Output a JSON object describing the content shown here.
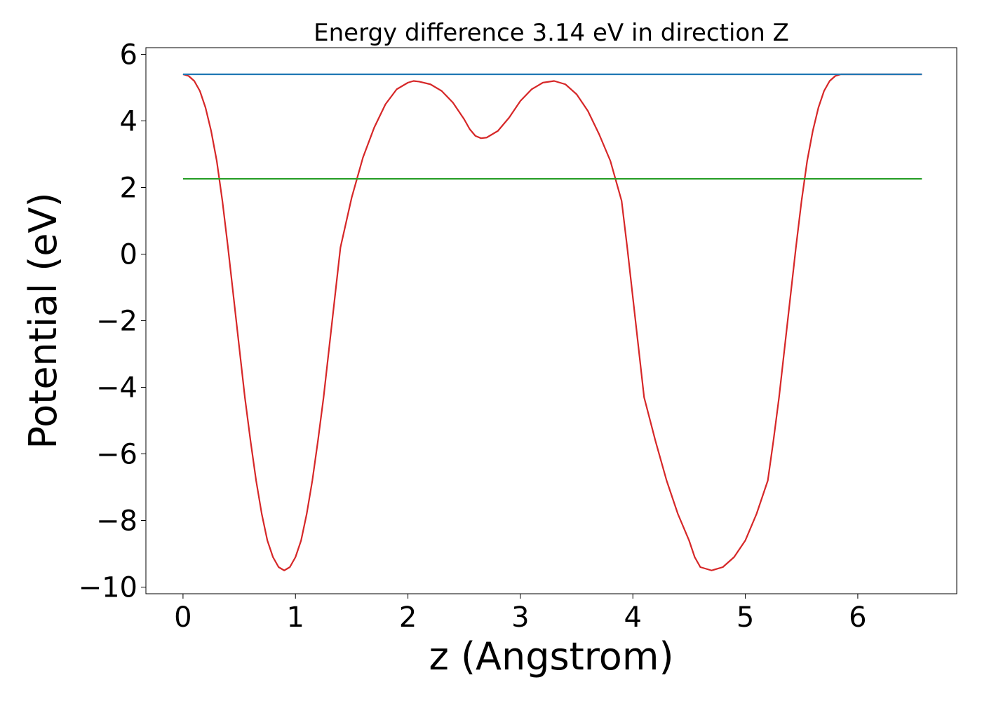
{
  "chart_data": {
    "type": "line",
    "title": "Energy difference 3.14 eV in direction Z",
    "xlabel": "z (Angstrom)",
    "ylabel": "Potential (eV)",
    "xlim": [
      -0.33,
      6.88
    ],
    "ylim": [
      -10.2,
      6.2
    ],
    "x_ticks": [
      0,
      1,
      2,
      3,
      4,
      5,
      6
    ],
    "x_tick_labels": [
      "0",
      "1",
      "2",
      "3",
      "4",
      "5",
      "6"
    ],
    "y_ticks": [
      -10,
      -8,
      -6,
      -4,
      -2,
      0,
      2,
      4,
      6
    ],
    "y_tick_labels": [
      "−10",
      "−8",
      "−6",
      "−4",
      "−2",
      "0",
      "2",
      "4",
      "6"
    ],
    "grid": false,
    "legend": "none",
    "series": [
      {
        "color": "#d62728",
        "x": [
          0.0,
          0.05,
          0.1,
          0.15,
          0.2,
          0.25,
          0.3,
          0.35,
          0.4,
          0.45,
          0.5,
          0.55,
          0.6,
          0.65,
          0.7,
          0.75,
          0.8,
          0.85,
          0.9,
          0.95,
          1.0,
          1.05,
          1.1,
          1.15,
          1.2,
          1.25,
          1.3,
          1.35,
          1.4,
          1.5,
          1.6,
          1.7,
          1.8,
          1.9,
          2.0,
          2.05,
          2.1,
          2.2,
          2.3,
          2.4,
          2.5,
          2.55,
          2.6,
          2.65,
          2.7,
          2.8,
          2.9,
          3.0,
          3.1,
          3.2,
          3.3,
          3.4,
          3.5,
          3.6,
          3.7,
          3.8,
          3.9,
          3.95,
          4.0,
          4.05,
          4.1,
          4.2,
          4.3,
          4.4,
          4.5,
          4.55,
          4.6,
          4.7,
          4.8,
          4.9,
          5.0,
          5.1,
          5.2,
          5.25,
          5.3,
          5.35,
          5.4,
          5.45,
          5.5,
          5.55,
          5.6,
          5.65,
          5.7,
          5.75,
          5.8,
          5.85,
          5.9,
          5.95,
          6.0,
          6.05,
          6.1,
          6.15,
          6.2,
          6.25,
          6.3,
          6.35,
          6.4,
          6.45,
          6.5,
          6.55,
          6.57
        ],
        "y": [
          5.4,
          5.35,
          5.2,
          4.9,
          4.4,
          3.7,
          2.8,
          1.6,
          0.2,
          -1.3,
          -2.8,
          -4.3,
          -5.6,
          -6.8,
          -7.8,
          -8.6,
          -9.1,
          -9.4,
          -9.5,
          -9.4,
          -9.1,
          -8.6,
          -7.8,
          -6.8,
          -5.6,
          -4.3,
          -2.8,
          -1.3,
          0.2,
          1.7,
          2.9,
          3.8,
          4.5,
          4.95,
          5.15,
          5.2,
          5.18,
          5.1,
          4.9,
          4.55,
          4.05,
          3.75,
          3.55,
          3.48,
          3.5,
          3.7,
          4.1,
          4.6,
          4.95,
          5.15,
          5.2,
          5.1,
          4.8,
          4.3,
          3.6,
          2.8,
          1.6,
          0.2,
          -1.3,
          -2.8,
          -4.3,
          -5.6,
          -6.8,
          -7.8,
          -8.6,
          -9.1,
          -9.4,
          -9.5,
          -9.4,
          -9.1,
          -8.6,
          -7.8,
          -6.8,
          -5.6,
          -4.3,
          -2.8,
          -1.3,
          0.2,
          1.6,
          2.8,
          3.7,
          4.4,
          4.9,
          5.2,
          5.35,
          5.4,
          5.4,
          5.4,
          5.4,
          5.4,
          5.4,
          5.4,
          5.4,
          5.4,
          5.4,
          5.4,
          5.4,
          5.4,
          5.4,
          5.4,
          5.4
        ]
      },
      {
        "color": "#1f77b4",
        "x": [
          0.0,
          6.57
        ],
        "y": [
          5.4,
          5.4
        ]
      },
      {
        "color": "#2ca02c",
        "x": [
          0.0,
          6.57
        ],
        "y": [
          2.26,
          2.26
        ]
      }
    ]
  }
}
